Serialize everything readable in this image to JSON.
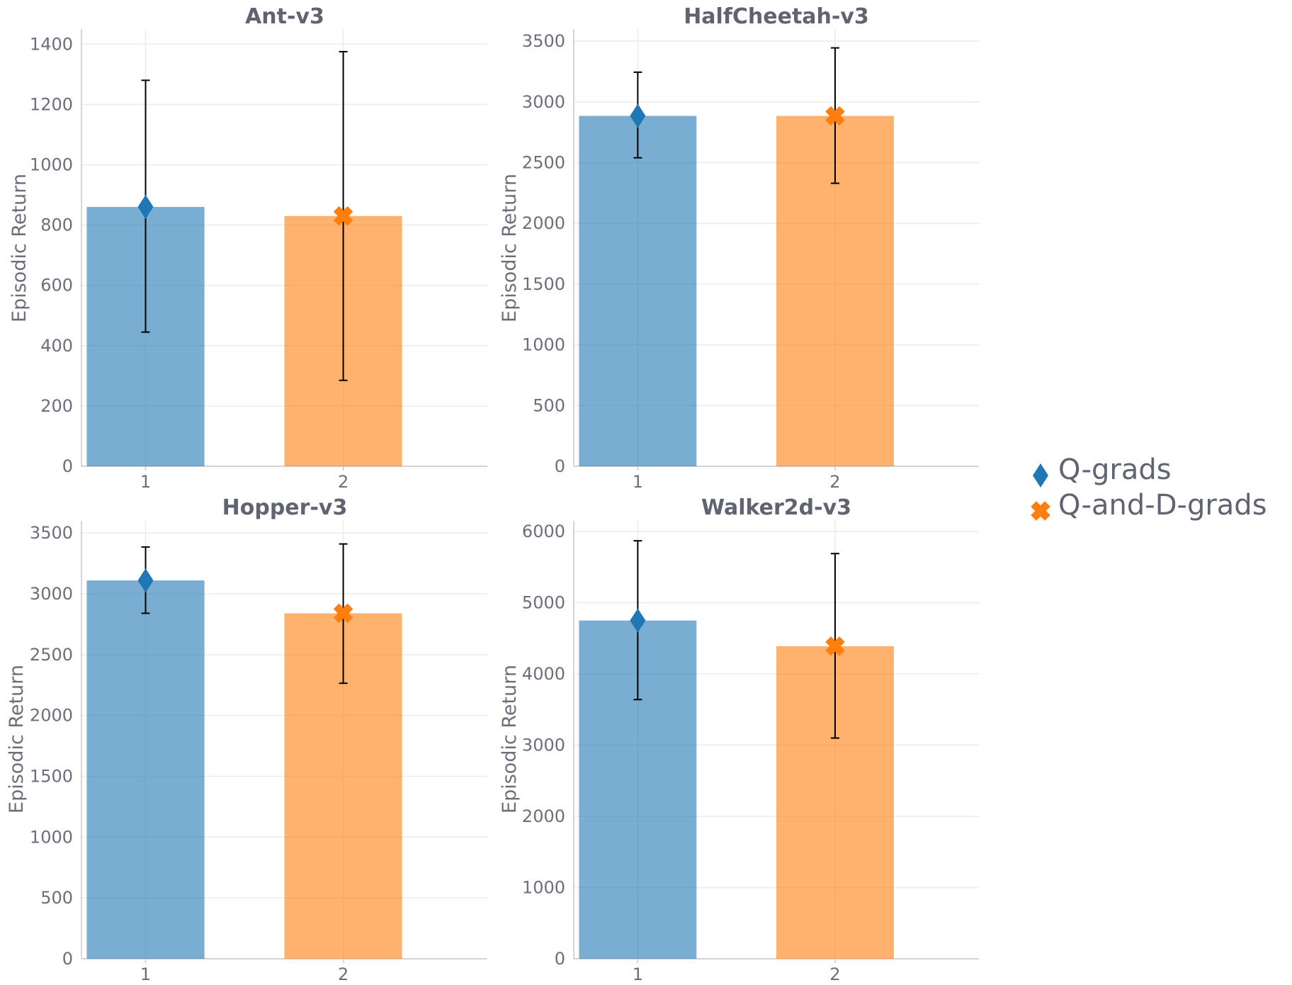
{
  "chart_data": [
    {
      "type": "bar",
      "title": "Ant-v3",
      "ylabel": "Episodic Return",
      "categories": [
        "1",
        "2"
      ],
      "series": [
        {
          "values": [
            860,
            830
          ],
          "err_low": [
            445,
            285
          ],
          "err_high": [
            1280,
            1375
          ]
        }
      ],
      "ylim": [
        0,
        1450
      ],
      "yticks": [
        0,
        200,
        400,
        600,
        800,
        1000,
        1200,
        1400
      ]
    },
    {
      "type": "bar",
      "title": "HalfCheetah-v3",
      "ylabel": "Episodic Return",
      "categories": [
        "1",
        "2"
      ],
      "series": [
        {
          "values": [
            2885,
            2885
          ],
          "err_low": [
            2540,
            2330
          ],
          "err_high": [
            3245,
            3445
          ]
        }
      ],
      "ylim": [
        0,
        3600
      ],
      "yticks": [
        0,
        500,
        1000,
        1500,
        2000,
        2500,
        3000,
        3500
      ]
    },
    {
      "type": "bar",
      "title": "Hopper-v3",
      "ylabel": "Episodic Return",
      "categories": [
        "1",
        "2"
      ],
      "series": [
        {
          "values": [
            3110,
            2840
          ],
          "err_low": [
            2840,
            2265
          ],
          "err_high": [
            3385,
            3410
          ]
        }
      ],
      "ylim": [
        0,
        3600
      ],
      "yticks": [
        0,
        500,
        1000,
        1500,
        2000,
        2500,
        3000,
        3500
      ]
    },
    {
      "type": "bar",
      "title": "Walker2d-v3",
      "ylabel": "Episodic Return",
      "categories": [
        "1",
        "2"
      ],
      "series": [
        {
          "values": [
            4750,
            4390
          ],
          "err_low": [
            3640,
            3100
          ],
          "err_high": [
            5870,
            5690
          ]
        }
      ],
      "ylim": [
        0,
        6150
      ],
      "yticks": [
        0,
        1000,
        2000,
        3000,
        4000,
        5000,
        6000
      ]
    }
  ],
  "legend": [
    {
      "label": "Q-grads",
      "marker": "diamond",
      "color": "#1f77b4"
    },
    {
      "label": "Q-and-D-grads",
      "marker": "x",
      "color": "#ff7f0e"
    }
  ],
  "colors": {
    "bar_fill": [
      "#1f77b4",
      "#ff7f0e"
    ],
    "bar_opacity": 0.6,
    "error_bar": "#000000"
  }
}
